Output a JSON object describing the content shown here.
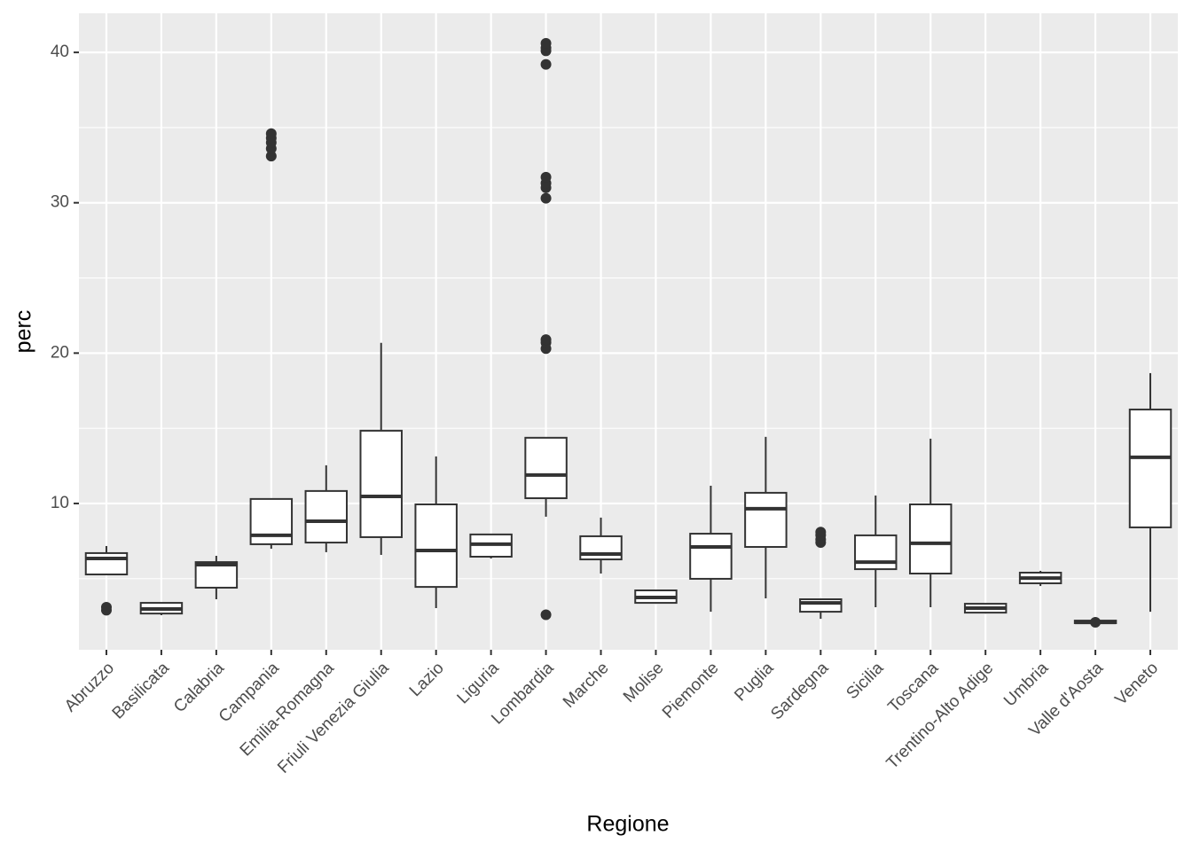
{
  "chart_data": {
    "type": "boxplot",
    "x_label": "Regione",
    "y_label": "perc",
    "categories": [
      "Abruzzo",
      "Basilicata",
      "Calabria",
      "Campania",
      "Emilia-Romagna",
      "Friuli Venezia Giulia",
      "Lazio",
      "Liguria",
      "Lombardia",
      "Marche",
      "Molise",
      "Piemonte",
      "Puglia",
      "Sardegna",
      "Sicilia",
      "Toscana",
      "Trentino-Alto Adige",
      "Umbria",
      "Valle d'Aosta",
      "Veneto"
    ],
    "lower": [
      5.28,
      2.57,
      3.63,
      6.99,
      6.76,
      6.58,
      3.04,
      6.34,
      9.12,
      5.34,
      3.33,
      2.8,
      3.69,
      2.33,
      3.1,
      3.1,
      2.68,
      4.51,
      2.04,
      2.8
    ],
    "q1": [
      5.28,
      2.68,
      4.4,
      7.29,
      7.4,
      7.76,
      4.45,
      6.46,
      10.35,
      6.28,
      3.39,
      4.99,
      7.11,
      2.8,
      5.63,
      5.34,
      2.74,
      4.69,
      2.04,
      8.41
    ],
    "median": [
      6.34,
      2.98,
      5.93,
      7.88,
      8.82,
      10.47,
      6.87,
      7.29,
      11.89,
      6.64,
      3.75,
      7.11,
      9.65,
      3.39,
      6.1,
      7.35,
      3.04,
      5.04,
      2.09,
      13.07
    ],
    "q3": [
      6.7,
      3.39,
      6.1,
      10.3,
      10.83,
      14.84,
      9.94,
      7.94,
      14.37,
      7.82,
      4.22,
      7.99,
      10.71,
      3.63,
      7.88,
      9.94,
      3.33,
      5.4,
      2.21,
      16.25
    ],
    "upper": [
      7.17,
      3.4,
      6.52,
      10.3,
      12.54,
      20.68,
      13.13,
      7.94,
      14.37,
      9.06,
      4.22,
      11.18,
      14.43,
      3.69,
      10.53,
      14.31,
      3.33,
      5.52,
      2.21,
      18.67
    ],
    "outliers": [
      [
        2.9,
        3.1
      ],
      [],
      [],
      [
        33.1,
        33.6,
        34.0,
        34.3,
        34.6
      ],
      [],
      [],
      [],
      [],
      [
        2.6,
        20.3,
        20.7,
        20.9,
        30.3,
        31.0,
        31.3,
        31.7,
        39.2,
        40.1,
        40.3,
        40.6
      ],
      [],
      [],
      [],
      [],
      [
        7.4,
        7.6,
        7.9,
        8.1
      ],
      [],
      [],
      [],
      [],
      [
        2.1
      ],
      []
    ],
    "color": "#333333",
    "fill": "#ffffff",
    "ylim": [
      0.27,
      42.6
    ],
    "yticks": [
      10,
      20,
      30,
      40
    ],
    "minor_yticks": [
      5,
      15,
      25,
      35
    ],
    "grid": true
  }
}
